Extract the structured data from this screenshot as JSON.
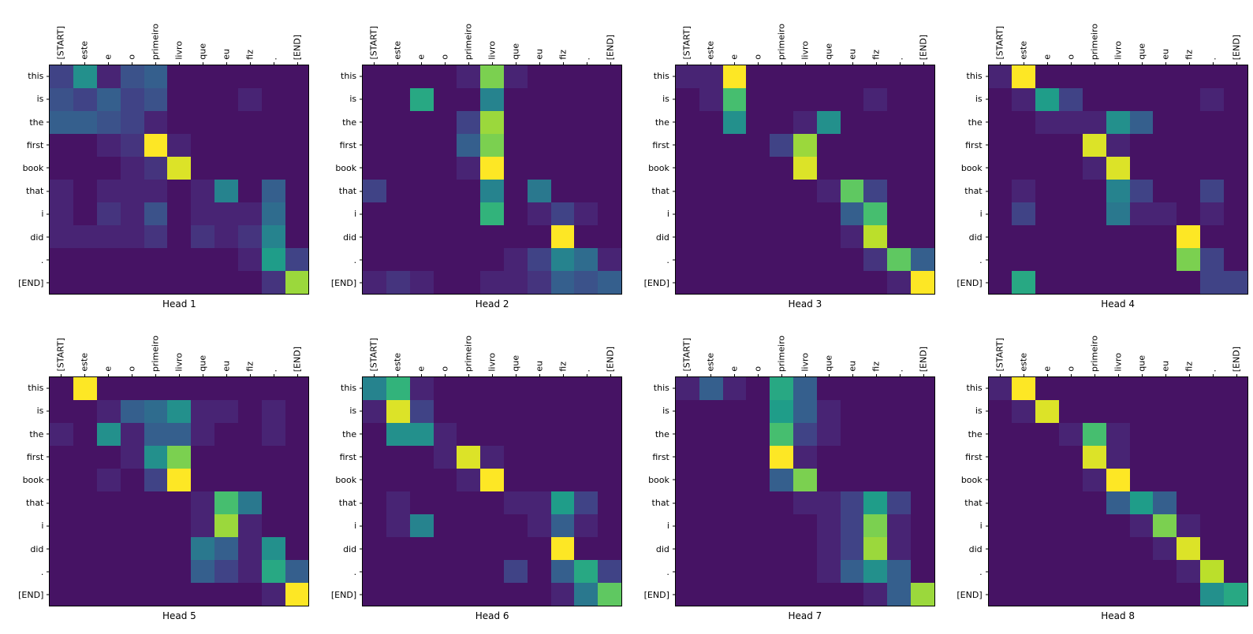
{
  "figure": {
    "description": "Transformer attention weights, 8 heads, Portuguese source to English target",
    "rows": 2,
    "cols": 4
  },
  "chart_data": {
    "type": "heatmap",
    "colormap": "viridis",
    "value_range": [
      0,
      1
    ],
    "x_labels": [
      "[START]",
      "este",
      "e",
      "o",
      "primeiro",
      "livro",
      "que",
      "eu",
      "fiz",
      ".",
      "[END]"
    ],
    "y_labels": [
      "this",
      "is",
      "the",
      "first",
      "book",
      "that",
      "i",
      "did",
      ".",
      "[END]"
    ],
    "viridis_stops": [
      [
        68,
        1,
        84
      ],
      [
        72,
        40,
        120
      ],
      [
        62,
        74,
        137
      ],
      [
        49,
        104,
        142
      ],
      [
        38,
        130,
        142
      ],
      [
        31,
        158,
        137
      ],
      [
        53,
        183,
        121
      ],
      [
        109,
        205,
        89
      ],
      [
        180,
        222,
        44
      ],
      [
        253,
        231,
        37
      ]
    ],
    "heads": [
      {
        "title": "Head 1",
        "values": [
          [
            0.2,
            0.5,
            0.1,
            0.25,
            0.3,
            0.05,
            0.05,
            0.05,
            0.05,
            0.05,
            0.05
          ],
          [
            0.25,
            0.2,
            0.3,
            0.2,
            0.25,
            0.05,
            0.05,
            0.05,
            0.1,
            0.05,
            0.05
          ],
          [
            0.3,
            0.3,
            0.25,
            0.2,
            0.1,
            0.05,
            0.05,
            0.05,
            0.05,
            0.05,
            0.05
          ],
          [
            0.05,
            0.05,
            0.1,
            0.15,
            1.0,
            0.1,
            0.05,
            0.05,
            0.05,
            0.05,
            0.05
          ],
          [
            0.05,
            0.05,
            0.05,
            0.1,
            0.15,
            0.95,
            0.05,
            0.05,
            0.05,
            0.05,
            0.05
          ],
          [
            0.1,
            0.05,
            0.1,
            0.1,
            0.1,
            0.05,
            0.1,
            0.45,
            0.05,
            0.3,
            0.05
          ],
          [
            0.1,
            0.05,
            0.15,
            0.1,
            0.25,
            0.05,
            0.1,
            0.1,
            0.1,
            0.35,
            0.05
          ],
          [
            0.1,
            0.1,
            0.1,
            0.1,
            0.15,
            0.05,
            0.15,
            0.1,
            0.15,
            0.45,
            0.05
          ],
          [
            0.05,
            0.05,
            0.05,
            0.05,
            0.05,
            0.05,
            0.05,
            0.05,
            0.1,
            0.55,
            0.2
          ],
          [
            0.05,
            0.05,
            0.05,
            0.05,
            0.05,
            0.05,
            0.05,
            0.05,
            0.05,
            0.15,
            0.85
          ]
        ]
      },
      {
        "title": "Head 2",
        "values": [
          [
            0.05,
            0.05,
            0.05,
            0.05,
            0.1,
            0.8,
            0.1,
            0.05,
            0.05,
            0.05,
            0.05
          ],
          [
            0.05,
            0.05,
            0.6,
            0.05,
            0.05,
            0.45,
            0.05,
            0.05,
            0.05,
            0.05,
            0.05
          ],
          [
            0.05,
            0.05,
            0.05,
            0.05,
            0.2,
            0.85,
            0.05,
            0.05,
            0.05,
            0.05,
            0.05
          ],
          [
            0.05,
            0.05,
            0.05,
            0.05,
            0.3,
            0.8,
            0.05,
            0.05,
            0.05,
            0.05,
            0.05
          ],
          [
            0.05,
            0.05,
            0.05,
            0.05,
            0.1,
            1.0,
            0.05,
            0.05,
            0.05,
            0.05,
            0.05
          ],
          [
            0.2,
            0.05,
            0.05,
            0.05,
            0.05,
            0.45,
            0.05,
            0.4,
            0.05,
            0.05,
            0.05
          ],
          [
            0.05,
            0.05,
            0.05,
            0.05,
            0.05,
            0.65,
            0.05,
            0.1,
            0.2,
            0.1,
            0.05
          ],
          [
            0.05,
            0.05,
            0.05,
            0.05,
            0.05,
            0.05,
            0.05,
            0.05,
            1.0,
            0.05,
            0.05
          ],
          [
            0.05,
            0.05,
            0.05,
            0.05,
            0.05,
            0.05,
            0.1,
            0.2,
            0.45,
            0.35,
            0.1
          ],
          [
            0.1,
            0.15,
            0.1,
            0.05,
            0.05,
            0.1,
            0.1,
            0.15,
            0.3,
            0.25,
            0.3
          ]
        ]
      },
      {
        "title": "Head 3",
        "values": [
          [
            0.1,
            0.1,
            1.0,
            0.05,
            0.05,
            0.05,
            0.05,
            0.05,
            0.05,
            0.05,
            0.05
          ],
          [
            0.05,
            0.1,
            0.7,
            0.05,
            0.05,
            0.05,
            0.05,
            0.05,
            0.1,
            0.05,
            0.05
          ],
          [
            0.05,
            0.05,
            0.5,
            0.05,
            0.05,
            0.1,
            0.5,
            0.05,
            0.05,
            0.05,
            0.05
          ],
          [
            0.05,
            0.05,
            0.05,
            0.05,
            0.2,
            0.85,
            0.05,
            0.05,
            0.05,
            0.05,
            0.05
          ],
          [
            0.05,
            0.05,
            0.05,
            0.05,
            0.05,
            0.95,
            0.05,
            0.05,
            0.05,
            0.05,
            0.05
          ],
          [
            0.05,
            0.05,
            0.05,
            0.05,
            0.05,
            0.05,
            0.1,
            0.75,
            0.2,
            0.05,
            0.05
          ],
          [
            0.05,
            0.05,
            0.05,
            0.05,
            0.05,
            0.05,
            0.05,
            0.3,
            0.7,
            0.05,
            0.05
          ],
          [
            0.05,
            0.05,
            0.05,
            0.05,
            0.05,
            0.05,
            0.05,
            0.1,
            0.9,
            0.05,
            0.05
          ],
          [
            0.05,
            0.05,
            0.05,
            0.05,
            0.05,
            0.05,
            0.05,
            0.05,
            0.15,
            0.75,
            0.3
          ],
          [
            0.05,
            0.05,
            0.05,
            0.05,
            0.05,
            0.05,
            0.05,
            0.05,
            0.05,
            0.1,
            1.0
          ]
        ]
      },
      {
        "title": "Head 4",
        "values": [
          [
            0.1,
            1.0,
            0.05,
            0.05,
            0.05,
            0.05,
            0.05,
            0.05,
            0.05,
            0.05,
            0.05
          ],
          [
            0.05,
            0.1,
            0.55,
            0.2,
            0.05,
            0.05,
            0.05,
            0.05,
            0.05,
            0.1,
            0.05
          ],
          [
            0.05,
            0.05,
            0.1,
            0.1,
            0.1,
            0.5,
            0.3,
            0.05,
            0.05,
            0.05,
            0.05
          ],
          [
            0.05,
            0.05,
            0.05,
            0.05,
            0.95,
            0.1,
            0.05,
            0.05,
            0.05,
            0.05,
            0.05
          ],
          [
            0.05,
            0.05,
            0.05,
            0.05,
            0.1,
            0.95,
            0.05,
            0.05,
            0.05,
            0.05,
            0.05
          ],
          [
            0.05,
            0.1,
            0.05,
            0.05,
            0.05,
            0.45,
            0.2,
            0.05,
            0.05,
            0.2,
            0.05
          ],
          [
            0.05,
            0.2,
            0.05,
            0.05,
            0.05,
            0.4,
            0.1,
            0.1,
            0.05,
            0.1,
            0.05
          ],
          [
            0.05,
            0.05,
            0.05,
            0.05,
            0.05,
            0.05,
            0.05,
            0.05,
            1.0,
            0.05,
            0.05
          ],
          [
            0.05,
            0.05,
            0.05,
            0.05,
            0.05,
            0.05,
            0.05,
            0.05,
            0.8,
            0.2,
            0.05
          ],
          [
            0.05,
            0.6,
            0.05,
            0.05,
            0.05,
            0.05,
            0.05,
            0.05,
            0.05,
            0.2,
            0.2
          ]
        ]
      },
      {
        "title": "Head 5",
        "values": [
          [
            0.05,
            1.0,
            0.05,
            0.05,
            0.05,
            0.05,
            0.05,
            0.05,
            0.05,
            0.05,
            0.05
          ],
          [
            0.05,
            0.05,
            0.1,
            0.3,
            0.35,
            0.5,
            0.1,
            0.1,
            0.05,
            0.1,
            0.05
          ],
          [
            0.1,
            0.05,
            0.5,
            0.1,
            0.3,
            0.3,
            0.1,
            0.05,
            0.05,
            0.1,
            0.05
          ],
          [
            0.05,
            0.05,
            0.05,
            0.1,
            0.5,
            0.8,
            0.05,
            0.05,
            0.05,
            0.05,
            0.05
          ],
          [
            0.05,
            0.05,
            0.1,
            0.05,
            0.2,
            1.0,
            0.05,
            0.05,
            0.05,
            0.05,
            0.05
          ],
          [
            0.05,
            0.05,
            0.05,
            0.05,
            0.05,
            0.05,
            0.1,
            0.7,
            0.4,
            0.05,
            0.05
          ],
          [
            0.05,
            0.05,
            0.05,
            0.05,
            0.05,
            0.05,
            0.1,
            0.85,
            0.1,
            0.05,
            0.05
          ],
          [
            0.05,
            0.05,
            0.05,
            0.05,
            0.05,
            0.05,
            0.4,
            0.3,
            0.1,
            0.5,
            0.05
          ],
          [
            0.05,
            0.05,
            0.05,
            0.05,
            0.05,
            0.05,
            0.3,
            0.2,
            0.1,
            0.6,
            0.3
          ],
          [
            0.05,
            0.05,
            0.05,
            0.05,
            0.05,
            0.05,
            0.05,
            0.05,
            0.05,
            0.1,
            1.0
          ]
        ]
      },
      {
        "title": "Head 6",
        "values": [
          [
            0.45,
            0.65,
            0.1,
            0.05,
            0.05,
            0.05,
            0.05,
            0.05,
            0.05,
            0.05,
            0.05
          ],
          [
            0.1,
            0.95,
            0.2,
            0.05,
            0.05,
            0.05,
            0.05,
            0.05,
            0.05,
            0.05,
            0.05
          ],
          [
            0.05,
            0.5,
            0.5,
            0.1,
            0.05,
            0.05,
            0.05,
            0.05,
            0.05,
            0.05,
            0.05
          ],
          [
            0.05,
            0.05,
            0.05,
            0.1,
            0.95,
            0.1,
            0.05,
            0.05,
            0.05,
            0.05,
            0.05
          ],
          [
            0.05,
            0.05,
            0.05,
            0.05,
            0.1,
            1.0,
            0.05,
            0.05,
            0.05,
            0.05,
            0.05
          ],
          [
            0.05,
            0.1,
            0.05,
            0.05,
            0.05,
            0.05,
            0.1,
            0.1,
            0.55,
            0.2,
            0.05
          ],
          [
            0.05,
            0.1,
            0.45,
            0.05,
            0.05,
            0.05,
            0.05,
            0.1,
            0.3,
            0.1,
            0.05
          ],
          [
            0.05,
            0.05,
            0.05,
            0.05,
            0.05,
            0.05,
            0.05,
            0.05,
            1.0,
            0.05,
            0.05
          ],
          [
            0.05,
            0.05,
            0.05,
            0.05,
            0.05,
            0.05,
            0.2,
            0.05,
            0.3,
            0.6,
            0.2
          ],
          [
            0.05,
            0.05,
            0.05,
            0.05,
            0.05,
            0.05,
            0.05,
            0.05,
            0.1,
            0.4,
            0.75
          ]
        ]
      },
      {
        "title": "Head 7",
        "values": [
          [
            0.1,
            0.3,
            0.1,
            0.05,
            0.6,
            0.3,
            0.05,
            0.05,
            0.05,
            0.05,
            0.05
          ],
          [
            0.05,
            0.05,
            0.05,
            0.05,
            0.55,
            0.3,
            0.1,
            0.05,
            0.05,
            0.05,
            0.05
          ],
          [
            0.05,
            0.05,
            0.05,
            0.05,
            0.7,
            0.2,
            0.1,
            0.05,
            0.05,
            0.05,
            0.05
          ],
          [
            0.05,
            0.05,
            0.05,
            0.05,
            1.0,
            0.1,
            0.05,
            0.05,
            0.05,
            0.05,
            0.05
          ],
          [
            0.05,
            0.05,
            0.05,
            0.05,
            0.3,
            0.8,
            0.05,
            0.05,
            0.05,
            0.05,
            0.05
          ],
          [
            0.05,
            0.05,
            0.05,
            0.05,
            0.05,
            0.1,
            0.1,
            0.2,
            0.55,
            0.2,
            0.05
          ],
          [
            0.05,
            0.05,
            0.05,
            0.05,
            0.05,
            0.05,
            0.1,
            0.2,
            0.8,
            0.1,
            0.05
          ],
          [
            0.05,
            0.05,
            0.05,
            0.05,
            0.05,
            0.05,
            0.1,
            0.2,
            0.85,
            0.1,
            0.05
          ],
          [
            0.05,
            0.05,
            0.05,
            0.05,
            0.05,
            0.05,
            0.1,
            0.3,
            0.5,
            0.3,
            0.05
          ],
          [
            0.05,
            0.05,
            0.05,
            0.05,
            0.05,
            0.05,
            0.05,
            0.05,
            0.1,
            0.3,
            0.85
          ]
        ]
      },
      {
        "title": "Head 8",
        "values": [
          [
            0.1,
            1.0,
            0.05,
            0.05,
            0.05,
            0.05,
            0.05,
            0.05,
            0.05,
            0.05,
            0.05
          ],
          [
            0.05,
            0.1,
            0.95,
            0.05,
            0.05,
            0.05,
            0.05,
            0.05,
            0.05,
            0.05,
            0.05
          ],
          [
            0.05,
            0.05,
            0.05,
            0.1,
            0.7,
            0.1,
            0.05,
            0.05,
            0.05,
            0.05,
            0.05
          ],
          [
            0.05,
            0.05,
            0.05,
            0.05,
            0.95,
            0.1,
            0.05,
            0.05,
            0.05,
            0.05,
            0.05
          ],
          [
            0.05,
            0.05,
            0.05,
            0.05,
            0.1,
            1.0,
            0.05,
            0.05,
            0.05,
            0.05,
            0.05
          ],
          [
            0.05,
            0.05,
            0.05,
            0.05,
            0.05,
            0.3,
            0.55,
            0.3,
            0.05,
            0.05,
            0.05
          ],
          [
            0.05,
            0.05,
            0.05,
            0.05,
            0.05,
            0.05,
            0.1,
            0.8,
            0.1,
            0.05,
            0.05
          ],
          [
            0.05,
            0.05,
            0.05,
            0.05,
            0.05,
            0.05,
            0.05,
            0.1,
            0.95,
            0.05,
            0.05
          ],
          [
            0.05,
            0.05,
            0.05,
            0.05,
            0.05,
            0.05,
            0.05,
            0.05,
            0.1,
            0.9,
            0.05
          ],
          [
            0.05,
            0.05,
            0.05,
            0.05,
            0.05,
            0.05,
            0.05,
            0.05,
            0.05,
            0.5,
            0.6
          ]
        ]
      }
    ]
  }
}
